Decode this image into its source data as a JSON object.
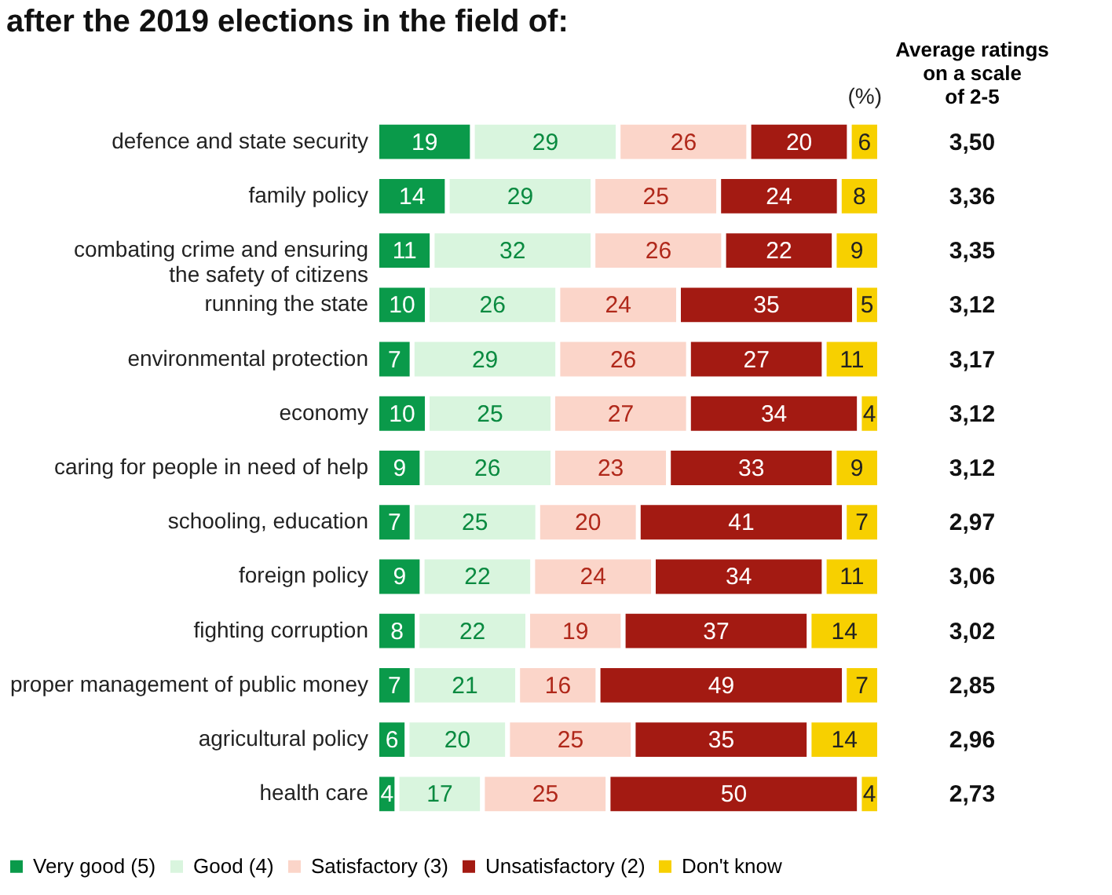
{
  "chart_data": {
    "type": "bar",
    "orientation": "horizontal",
    "stacked": true,
    "data_labels": true,
    "legend": "bottom",
    "title": "after the 2019 elections in the field of:",
    "categories": [
      "defence and state security",
      "family policy",
      "combating crime and ensuring the safety of citizens",
      "running the state",
      "environmental protection",
      "economy",
      "caring for people in need of help",
      "schooling, education",
      "foreign policy",
      "fighting corruption",
      "proper management of public money",
      "agricultural policy",
      "health care"
    ],
    "series": [
      {
        "name": "Very good (5)",
        "color": "#0a9a4a",
        "values": [
          19,
          14,
          11,
          10,
          7,
          10,
          9,
          7,
          9,
          8,
          7,
          6,
          4
        ]
      },
      {
        "name": "Good (4)",
        "color": "#d9f5de",
        "values": [
          29,
          29,
          32,
          26,
          29,
          25,
          26,
          25,
          22,
          22,
          21,
          20,
          17
        ]
      },
      {
        "name": "Satisfactory (3)",
        "color": "#fbd5c9",
        "values": [
          26,
          25,
          26,
          24,
          26,
          27,
          23,
          20,
          24,
          19,
          16,
          25,
          25
        ]
      },
      {
        "name": "Unsatisfactory (2)",
        "color": "#a31a12",
        "values": [
          20,
          24,
          22,
          35,
          27,
          34,
          33,
          41,
          34,
          37,
          49,
          35,
          50
        ]
      },
      {
        "name": "Don't know",
        "color": "#f7d000",
        "values": [
          6,
          8,
          9,
          5,
          11,
          4,
          9,
          7,
          11,
          14,
          7,
          14,
          4
        ]
      }
    ],
    "annotations": [
      "(%)",
      "Average ratings on a scale of 2-5",
      "3,50",
      "3,36",
      "3,35",
      "3,12",
      "3,17",
      "3,12",
      "3,12",
      "2,97",
      "3,06",
      "3,02",
      "2,85",
      "2,96",
      "2,73"
    ]
  }
}
